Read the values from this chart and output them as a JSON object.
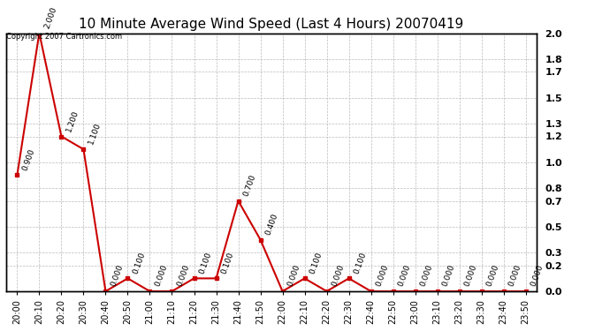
{
  "title": "10 Minute Average Wind Speed (Last 4 Hours) 20070419",
  "copyright": "Copyright 2007 Cartronics.com",
  "x_labels": [
    "20:00",
    "20:10",
    "20:20",
    "20:30",
    "20:40",
    "20:50",
    "21:00",
    "21:10",
    "21:20",
    "21:30",
    "21:40",
    "21:50",
    "22:00",
    "22:10",
    "22:20",
    "22:30",
    "22:40",
    "22:50",
    "23:00",
    "23:10",
    "23:20",
    "23:30",
    "23:40",
    "23:50"
  ],
  "y_values": [
    0.9,
    2.0,
    1.2,
    1.1,
    0.0,
    0.1,
    0.0,
    0.0,
    0.1,
    0.1,
    0.7,
    0.4,
    0.0,
    0.1,
    0.0,
    0.1,
    0.0,
    0.0,
    0.0,
    0.0,
    0.0,
    0.0,
    0.0,
    0.0
  ],
  "ylim": [
    0.0,
    2.0
  ],
  "yticks": [
    0.0,
    0.2,
    0.3,
    0.5,
    0.7,
    0.8,
    1.0,
    1.2,
    1.3,
    1.5,
    1.7,
    1.8,
    2.0
  ],
  "line_color": "#CC0000",
  "marker_color": "#CC0000",
  "bg_color": "#ffffff",
  "grid_color": "#bbbbbb",
  "title_fontsize": 11,
  "label_fontsize": 7,
  "annotation_fontsize": 6.5,
  "figsize": [
    6.9,
    3.75
  ],
  "dpi": 100
}
